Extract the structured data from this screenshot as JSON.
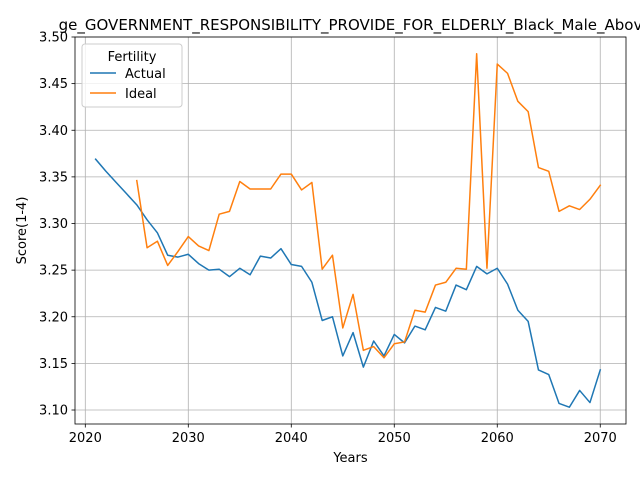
{
  "chart_data": {
    "type": "line",
    "title": "ge_GOVERNMENT_RESPONSIBILITY_PROVIDE_FOR_ELDERLY_Black_Male_Abov",
    "xlabel": "Years",
    "ylabel": "Score(1-4)",
    "xlim": [
      2019,
      2072.5
    ],
    "ylim": [
      3.085,
      3.5
    ],
    "xticks": [
      2020,
      2030,
      2040,
      2050,
      2060,
      2070
    ],
    "yticks": [
      3.1,
      3.15,
      3.2,
      3.25,
      3.3,
      3.35,
      3.4,
      3.45,
      3.5
    ],
    "xtick_labels": [
      "2020",
      "2030",
      "2040",
      "2050",
      "2060",
      "2070"
    ],
    "ytick_labels": [
      "3.10",
      "3.15",
      "3.20",
      "3.25",
      "3.30",
      "3.35",
      "3.40",
      "3.45",
      "3.50"
    ],
    "grid": true,
    "legend": {
      "title": "Fertility",
      "placement": "upper-left"
    },
    "series": [
      {
        "name": "Actual",
        "color": "#1f77b4",
        "x": [
          2021,
          2022,
          2023,
          2024,
          2025,
          2026,
          2027,
          2028,
          2029,
          2030,
          2031,
          2032,
          2033,
          2034,
          2035,
          2036,
          2037,
          2038,
          2039,
          2040,
          2041,
          2042,
          2043,
          2044,
          2045,
          2046,
          2047,
          2048,
          2049,
          2050,
          2051,
          2052,
          2053,
          2054,
          2055,
          2056,
          2057,
          2058,
          2059,
          2060,
          2061,
          2062,
          2063,
          2064,
          2065,
          2066,
          2067,
          2068,
          2069,
          2070
        ],
        "y": [
          3.369,
          3.356,
          3.344,
          3.332,
          3.32,
          3.304,
          3.29,
          3.266,
          3.264,
          3.267,
          3.257,
          3.25,
          3.251,
          3.243,
          3.252,
          3.245,
          3.265,
          3.263,
          3.273,
          3.256,
          3.254,
          3.237,
          3.196,
          3.2,
          3.158,
          3.183,
          3.146,
          3.174,
          3.158,
          3.181,
          3.172,
          3.19,
          3.186,
          3.21,
          3.206,
          3.234,
          3.229,
          3.254,
          3.246,
          3.252,
          3.235,
          3.207,
          3.195,
          3.143,
          3.138,
          3.107,
          3.103,
          3.121,
          3.108,
          3.143
        ]
      },
      {
        "name": "Ideal",
        "color": "#ff7f0e",
        "x": [
          2025,
          2026,
          2027,
          2028,
          2029,
          2030,
          2031,
          2032,
          2033,
          2034,
          2035,
          2036,
          2037,
          2038,
          2039,
          2040,
          2041,
          2042,
          2043,
          2044,
          2045,
          2046,
          2047,
          2048,
          2049,
          2050,
          2051,
          2052,
          2053,
          2054,
          2055,
          2056,
          2057,
          2058,
          2059,
          2060,
          2061,
          2062,
          2063,
          2064,
          2065,
          2066,
          2067,
          2068,
          2069,
          2070
        ],
        "y": [
          3.346,
          3.274,
          3.281,
          3.255,
          3.27,
          3.286,
          3.276,
          3.271,
          3.31,
          3.313,
          3.345,
          3.337,
          3.337,
          3.337,
          3.353,
          3.353,
          3.336,
          3.344,
          3.251,
          3.266,
          3.188,
          3.224,
          3.164,
          3.168,
          3.156,
          3.171,
          3.173,
          3.207,
          3.205,
          3.234,
          3.237,
          3.252,
          3.251,
          3.482,
          3.252,
          3.471,
          3.461,
          3.431,
          3.42,
          3.36,
          3.356,
          3.313,
          3.319,
          3.315,
          3.326,
          3.341
        ]
      }
    ]
  }
}
